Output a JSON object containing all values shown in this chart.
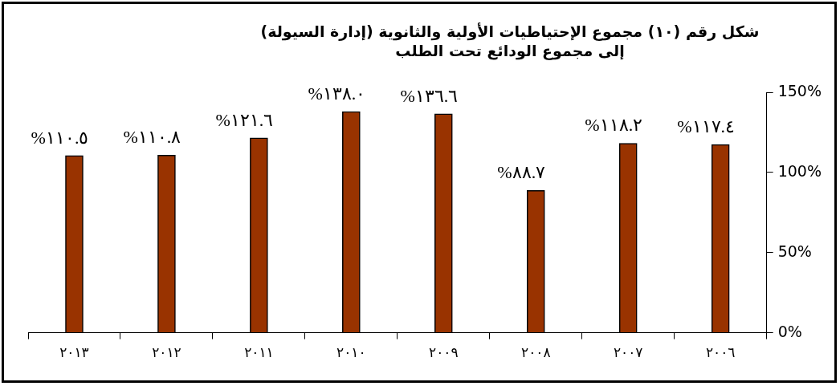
{
  "chart_data": {
    "type": "bar",
    "title": "شكل رقم (١٠) مجموع الإحتياطيات الأولية والثانوية (إدارة السيولة) إلى مجموع الودائع تحت الطلب",
    "categories": [
      "٢٠١٣",
      "٢٠١٢",
      "٢٠١١",
      "٢٠١٠",
      "٢٠٠٩",
      "٢٠٠٨",
      "٢٠٠٧",
      "٢٠٠٦"
    ],
    "values": [
      110.5,
      110.8,
      121.6,
      138.0,
      136.6,
      88.7,
      118.2,
      117.4
    ],
    "value_labels": [
      "%١١٠.٥",
      "%١١٠.٨",
      "%١٢١.٦",
      "%١٣٨.٠",
      "%١٣٦.٦",
      "%٨٨.٧",
      "%١١٨.٢",
      "%١١٧.٤"
    ],
    "color": "#993300",
    "ylim": [
      0,
      150
    ],
    "yticks": [
      {
        "value": 0,
        "label": "0%"
      },
      {
        "value": 50,
        "label": "50%"
      },
      {
        "value": 100,
        "label": "100%"
      },
      {
        "value": 150,
        "label": "150%"
      }
    ],
    "grid": false,
    "legend": false
  }
}
